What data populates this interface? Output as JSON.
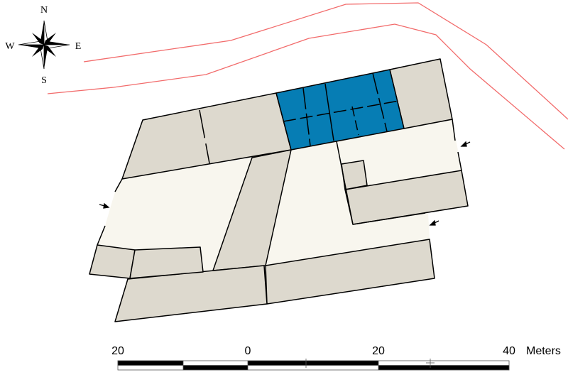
{
  "map": {
    "colors": {
      "room": "#ddd9ce",
      "corridor": "#f8f6ee",
      "highlight": "#067db4",
      "boundary_line": "#f26b6b",
      "wall": "#000000"
    },
    "highlighted_area": "blue rooms"
  },
  "compass": {
    "icon": "compass-rose-icon",
    "north": "N",
    "south": "S",
    "east": "E",
    "west": "W"
  },
  "scale_bar": {
    "labels": [
      "20",
      "0",
      "20",
      "40"
    ],
    "unit": "Meters"
  }
}
